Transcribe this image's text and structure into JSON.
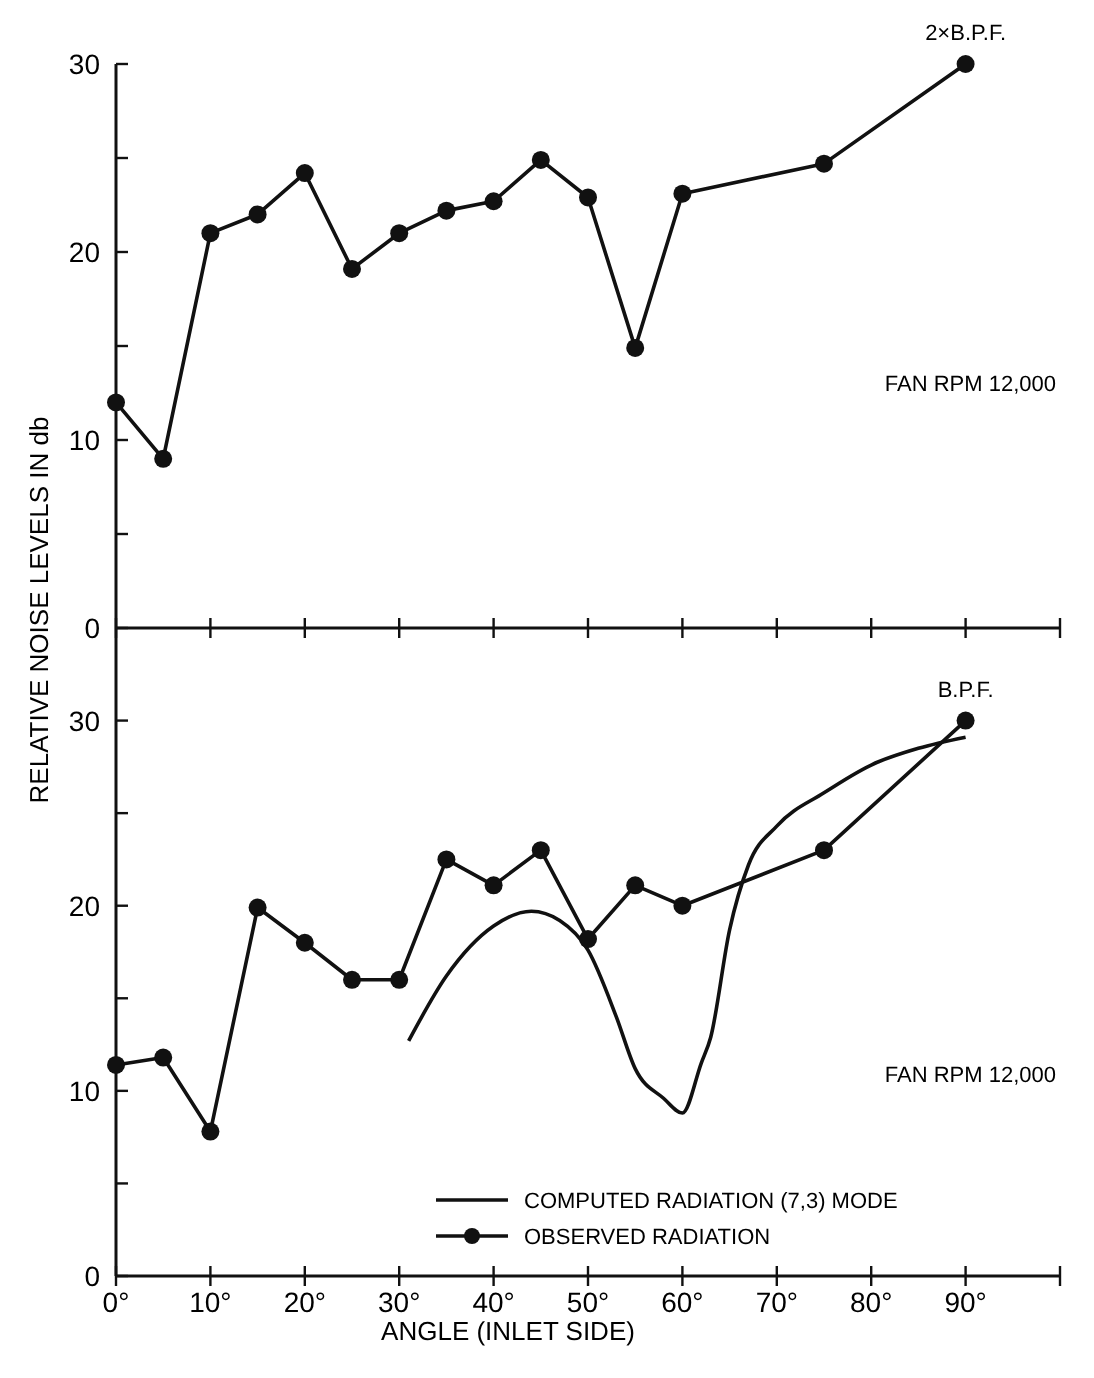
{
  "chart_data": [
    {
      "type": "line",
      "ylabel": "RELATIVE NOISE LEVELS IN db",
      "xlim": [
        0,
        100
      ],
      "ylim": [
        0,
        30
      ],
      "xticks": [
        0,
        10,
        20,
        30,
        40,
        50,
        60,
        70,
        80,
        90,
        100
      ],
      "yticks": [
        0,
        {
          "value": 5,
          "label": null
        },
        10,
        {
          "value": 15,
          "label": null
        },
        20,
        {
          "value": 25,
          "label": null
        },
        30
      ],
      "tick_labels": "y",
      "legend": false,
      "annotations": [
        {
          "text": "2×B.P.F.",
          "x": 90,
          "y": 30
        },
        "FAN RPM 12,000"
      ],
      "series": [
        {
          "color": "#111111",
          "marker": "circle",
          "x": [
            0,
            5,
            10,
            15,
            20,
            25,
            30,
            35,
            40,
            45,
            50,
            55,
            60,
            75,
            90
          ],
          "values": [
            12,
            9,
            21,
            22,
            24.2,
            19.1,
            21,
            22.2,
            22.7,
            24.9,
            22.9,
            14.9,
            23.1,
            24.7,
            30
          ]
        }
      ]
    },
    {
      "type": "line",
      "xlabel": "ANGLE (INLET SIDE)",
      "xlim": [
        0,
        100
      ],
      "ylim": [
        0,
        35
      ],
      "xticks": [
        {
          "value": 0,
          "label": "0°"
        },
        {
          "value": 10,
          "label": "10°"
        },
        {
          "value": 20,
          "label": "20°"
        },
        {
          "value": 30,
          "label": "30°"
        },
        {
          "value": 40,
          "label": "40°"
        },
        {
          "value": 50,
          "label": "50°"
        },
        {
          "value": 60,
          "label": "60°"
        },
        {
          "value": 70,
          "label": "70°"
        },
        {
          "value": 80,
          "label": "80°"
        },
        {
          "value": 90,
          "label": "90°"
        },
        {
          "value": 100,
          "label": null
        }
      ],
      "yticks": [
        0,
        {
          "value": 5,
          "label": null
        },
        10,
        {
          "value": 15,
          "label": null
        },
        20,
        {
          "value": 25,
          "label": null
        },
        30
      ],
      "legend": "bottom right",
      "annotations": [
        {
          "text": "B.P.F.",
          "x": 90,
          "y": 30
        },
        "FAN RPM 12,000"
      ],
      "series": [
        {
          "name": "COMPUTED RADIATION (7,3) MODE",
          "color": "#111111",
          "marker": "none",
          "x": [
            31,
            35,
            40,
            44,
            47,
            50,
            53,
            55,
            58,
            60,
            62,
            63,
            65,
            67,
            70,
            75,
            80,
            85,
            90
          ],
          "values": [
            12.7,
            16.2,
            18.9,
            19.7,
            19.2,
            17.6,
            14,
            11.2,
            9.6,
            8.8,
            11.5,
            12.9,
            18.7,
            22.2,
            24.3,
            26.1,
            27.6,
            28.5,
            29.1
          ]
        },
        {
          "name": "OBSERVED RADIATION",
          "color": "#111111",
          "marker": "circle",
          "x": [
            0,
            5,
            10,
            15,
            20,
            25,
            30,
            35,
            40,
            45,
            50,
            55,
            60,
            75,
            90
          ],
          "values": [
            11.4,
            11.8,
            7.8,
            19.9,
            18,
            16,
            16,
            22.5,
            21.1,
            23,
            18.2,
            21.1,
            20,
            23,
            30
          ]
        }
      ]
    }
  ]
}
